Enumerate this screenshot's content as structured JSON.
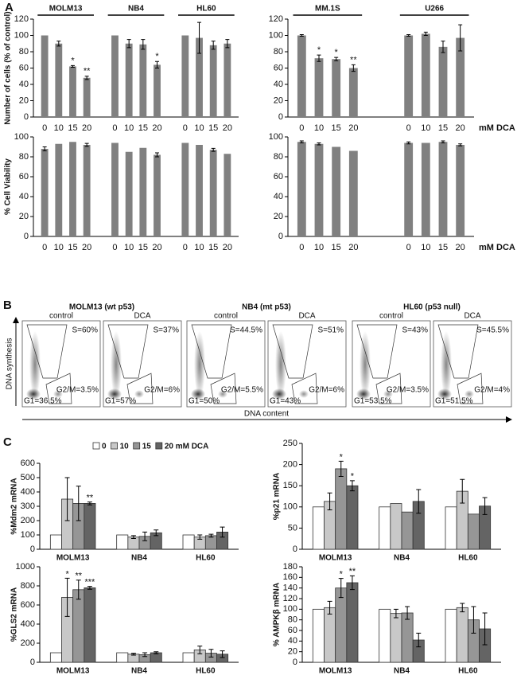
{
  "panel_labels": [
    "A",
    "B",
    "C"
  ],
  "chart_data": [
    {
      "type": "bar",
      "y_label": "Number of cells (% of control)",
      "groups": [
        "MOLM13",
        "NB4",
        "HL60"
      ],
      "categories": [
        "0",
        "10",
        "15",
        "20",
        "0",
        "10",
        "15",
        "20",
        "0",
        "10",
        "15",
        "20"
      ],
      "values": [
        100,
        90,
        62,
        48,
        100,
        90,
        89,
        64,
        100,
        97,
        88,
        90
      ],
      "errors": [
        null,
        3,
        1,
        2,
        null,
        5,
        6,
        4,
        null,
        19,
        5,
        5
      ],
      "significance": [
        null,
        null,
        "*",
        "**",
        null,
        null,
        null,
        "*",
        null,
        null,
        null,
        null
      ],
      "color": "#808080",
      "ylim": [
        0,
        120
      ],
      "yticks": [
        0,
        20,
        40,
        60,
        80,
        100,
        120
      ]
    },
    {
      "type": "bar",
      "x_label": "mM DCA",
      "groups": [
        "MM.1S",
        "U266"
      ],
      "categories": [
        "0",
        "10",
        "15",
        "20",
        "0",
        "10",
        "15",
        "20"
      ],
      "values": [
        100,
        72,
        71,
        60,
        100,
        102,
        86,
        97
      ],
      "errors": [
        1,
        4,
        2,
        4,
        1,
        2,
        7,
        16
      ],
      "significance": [
        null,
        "*",
        "*",
        "**",
        null,
        null,
        null,
        null
      ],
      "color": "#808080",
      "ylim": [
        0,
        120
      ],
      "yticks": [
        0,
        20,
        40,
        60,
        80,
        100,
        120
      ]
    },
    {
      "type": "bar",
      "y_label": "% Cell Viability",
      "groups": [
        null,
        null,
        null
      ],
      "categories": [
        "0",
        "10",
        "15",
        "20",
        "0",
        "10",
        "15",
        "20",
        "0",
        "10",
        "15",
        "20"
      ],
      "values": [
        88,
        93,
        95,
        92,
        94,
        85,
        89,
        82,
        94,
        92,
        87,
        83
      ],
      "errors": [
        2,
        null,
        null,
        1.5,
        null,
        null,
        null,
        2,
        null,
        null,
        1.5,
        null
      ],
      "color": "#808080",
      "ylim": [
        0,
        100
      ],
      "yticks": [
        0,
        20,
        40,
        60,
        80,
        100
      ]
    },
    {
      "type": "bar",
      "x_label": "mM DCA",
      "groups": [
        null,
        null
      ],
      "categories": [
        "0",
        "10",
        "15",
        "20",
        "0",
        "10",
        "15",
        "20"
      ],
      "values": [
        95,
        93,
        90,
        86,
        94,
        94,
        95,
        92
      ],
      "errors": [
        1,
        1,
        null,
        null,
        1,
        null,
        1,
        1
      ],
      "color": "#808080",
      "ylim": [
        0,
        100
      ],
      "yticks": [
        0,
        20,
        40,
        60,
        80,
        100
      ]
    },
    {
      "type": "bar",
      "y_label": "%Mdm2 mRNA",
      "categories": [
        "MOLM13",
        "NB4",
        "HL60"
      ],
      "series": [
        {
          "name": "0",
          "color": "#ffffff",
          "values": [
            100,
            100,
            100
          ]
        },
        {
          "name": "10",
          "color": "#c8c8c8",
          "values": [
            350,
            85,
            85
          ],
          "errors": [
            150,
            10,
            15
          ]
        },
        {
          "name": "15",
          "color": "#969696",
          "values": [
            320,
            90,
            95
          ],
          "errors": [
            120,
            30,
            10
          ]
        },
        {
          "name": "20 mM DCA",
          "color": "#646464",
          "values": [
            320,
            115,
            120
          ],
          "errors": [
            10,
            20,
            35
          ],
          "significance": [
            "**",
            null,
            null
          ]
        }
      ],
      "ylim": [
        0,
        600
      ],
      "yticks": [
        0,
        100,
        200,
        300,
        400,
        500,
        600
      ]
    },
    {
      "type": "bar",
      "y_label": "%p21 mRNA",
      "categories": [
        "MOLM13",
        "NB4",
        "HL60"
      ],
      "series": [
        {
          "color": "#ffffff",
          "values": [
            100,
            100,
            100
          ]
        },
        {
          "color": "#c8c8c8",
          "values": [
            113,
            108,
            137
          ],
          "errors": [
            20,
            null,
            28
          ]
        },
        {
          "color": "#969696",
          "values": [
            190,
            88,
            83
          ],
          "errors": [
            18,
            null,
            null
          ],
          "significance": [
            "*",
            null,
            null
          ]
        },
        {
          "color": "#646464",
          "values": [
            150,
            113,
            102
          ],
          "errors": [
            12,
            28,
            20
          ],
          "significance": [
            "*",
            null,
            null
          ]
        }
      ],
      "ylim": [
        0,
        250
      ],
      "yticks": [
        0,
        50,
        100,
        150,
        200,
        250
      ]
    },
    {
      "type": "bar",
      "y_label": "%GLS2 mRNA",
      "categories": [
        "MOLM13",
        "NB4",
        "HL60"
      ],
      "series": [
        {
          "color": "#ffffff",
          "values": [
            100,
            100,
            100
          ]
        },
        {
          "color": "#c8c8c8",
          "values": [
            680,
            85,
            130
          ],
          "errors": [
            200,
            10,
            40
          ],
          "significance": [
            "*",
            null,
            null
          ]
        },
        {
          "color": "#969696",
          "values": [
            760,
            80,
            95
          ],
          "errors": [
            100,
            20,
            40
          ],
          "significance": [
            "**",
            null,
            null
          ]
        },
        {
          "color": "#646464",
          "values": [
            780,
            100,
            85
          ],
          "errors": [
            15,
            10,
            35
          ],
          "significance": [
            "***",
            null,
            null
          ]
        }
      ],
      "ylim": [
        0,
        1000
      ],
      "yticks": [
        0,
        200,
        400,
        600,
        800,
        1000
      ]
    },
    {
      "type": "bar",
      "y_label": "% AMPKβ mRNA",
      "categories": [
        "MOLM13",
        "NB4",
        "HL60"
      ],
      "series": [
        {
          "color": "#ffffff",
          "values": [
            100,
            100,
            100
          ]
        },
        {
          "color": "#c8c8c8",
          "values": [
            103,
            92,
            103
          ],
          "errors": [
            12,
            8,
            8
          ]
        },
        {
          "color": "#969696",
          "values": [
            140,
            93,
            80
          ],
          "errors": [
            18,
            12,
            25
          ],
          "significance": [
            "*",
            null,
            null
          ]
        },
        {
          "color": "#646464",
          "values": [
            150,
            42,
            63
          ],
          "errors": [
            13,
            13,
            30
          ],
          "significance": [
            "**",
            null,
            null
          ]
        }
      ],
      "ylim": [
        0,
        180
      ],
      "yticks": [
        0,
        20,
        40,
        60,
        80,
        100,
        120,
        140,
        160,
        180
      ]
    }
  ],
  "flow_cytometry": {
    "y_label": "DNA synthesis",
    "x_label": "DNA content",
    "cell_lines": [
      {
        "title": "MOLM13 (wt p53)",
        "plots": [
          {
            "condition": "control",
            "s": "S=60%",
            "g2m": "G2/M=3.5%",
            "g1": "G1=36.5%"
          },
          {
            "condition": "DCA",
            "s": "S=37%",
            "g2m": "G2/M=6%",
            "g1": "G1=57%"
          }
        ]
      },
      {
        "title": "NB4 (mt p53)",
        "plots": [
          {
            "condition": "control",
            "s": "S=44.5%",
            "g2m": "G2/M=5.5%",
            "g1": "G1=50%"
          },
          {
            "condition": "DCA",
            "s": "S=51%",
            "g2m": "G2/M=6%",
            "g1": "G1=43%"
          }
        ]
      },
      {
        "title": "HL60 (p53 null)",
        "plots": [
          {
            "condition": "control",
            "s": "S=43%",
            "g2m": "G2/M=3.5%",
            "g1": "G1=53.5%"
          },
          {
            "condition": "DCA",
            "s": "S=45.5%",
            "g2m": "G2/M=4%",
            "g1": "G1=51.5%"
          }
        ]
      }
    ]
  }
}
